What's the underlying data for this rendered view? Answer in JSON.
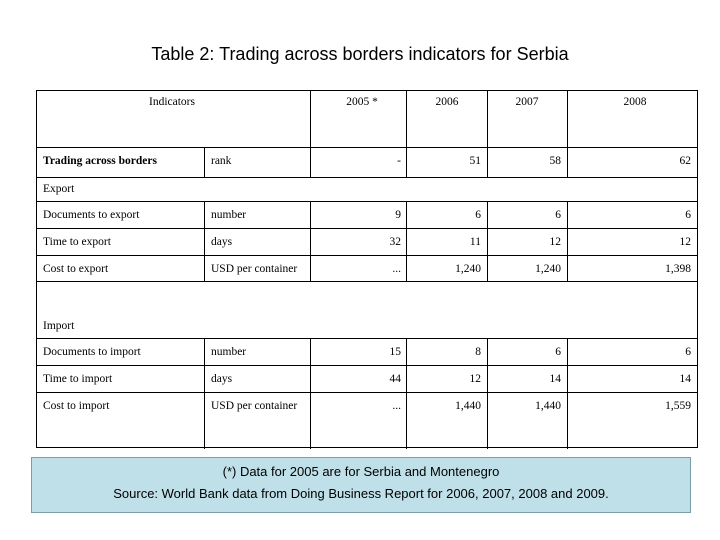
{
  "title": "Table 2: Trading across borders indicators for Serbia",
  "table": {
    "headers": {
      "indicators": "Indicators",
      "y2005": "2005 *",
      "y2006": "2006",
      "y2007": "2007",
      "y2008": "2008"
    },
    "summary_row": {
      "label": "Trading across borders",
      "unit": "rank",
      "v2005": "-",
      "v2006": "51",
      "v2007": "58",
      "v2008": "62"
    },
    "export_section": "Export",
    "export_rows": [
      {
        "label": "Documents to export",
        "unit": "number",
        "v2005": "9",
        "v2006": "6",
        "v2007": "6",
        "v2008": "6"
      },
      {
        "label": "Time to export",
        "unit": "days",
        "v2005": "32",
        "v2006": "11",
        "v2007": "12",
        "v2008": "12"
      },
      {
        "label": "Cost to export",
        "unit": "USD per container",
        "v2005": "...",
        "v2006": "1,240",
        "v2007": "1,240",
        "v2008": "1,398"
      }
    ],
    "import_section": "Import",
    "import_rows": [
      {
        "label": "Documents to import",
        "unit": "number",
        "v2005": "15",
        "v2006": "8",
        "v2007": "6",
        "v2008": "6"
      },
      {
        "label": "Time to import",
        "unit": "days",
        "v2005": "44",
        "v2006": "12",
        "v2007": "14",
        "v2008": "14"
      },
      {
        "label": "Cost to import",
        "unit": "USD per container",
        "v2005": "...",
        "v2006": "1,440",
        "v2007": "1,440",
        "v2008": "1,559"
      }
    ]
  },
  "notes": {
    "line1": "(*) Data for 2005 are for Serbia and Montenegro",
    "line2": "Source: World Bank data from Doing Business Report for 2006, 2007, 2008 and 2009."
  }
}
